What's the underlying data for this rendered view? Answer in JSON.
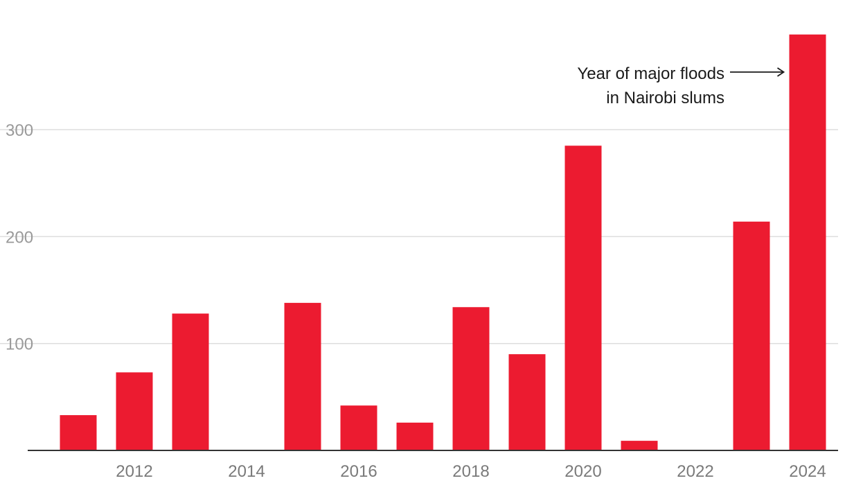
{
  "chart_data": {
    "type": "bar",
    "x": [
      2011,
      2012,
      2013,
      2014,
      2015,
      2016,
      2017,
      2018,
      2019,
      2020,
      2021,
      2022,
      2023,
      2024
    ],
    "values": [
      33,
      73,
      128,
      0,
      138,
      42,
      26,
      134,
      90,
      285,
      9,
      0,
      214,
      389
    ],
    "ylim": [
      0,
      400
    ],
    "yticks": [
      100,
      200,
      300
    ],
    "xticks": [
      2012,
      2014,
      2016,
      2018,
      2020,
      2022,
      2024
    ],
    "bar_color": "#ec1b30",
    "grid": true,
    "annotation": {
      "lines": [
        "Year of major floods",
        "in Nairobi slums"
      ],
      "target_year": 2024
    }
  }
}
